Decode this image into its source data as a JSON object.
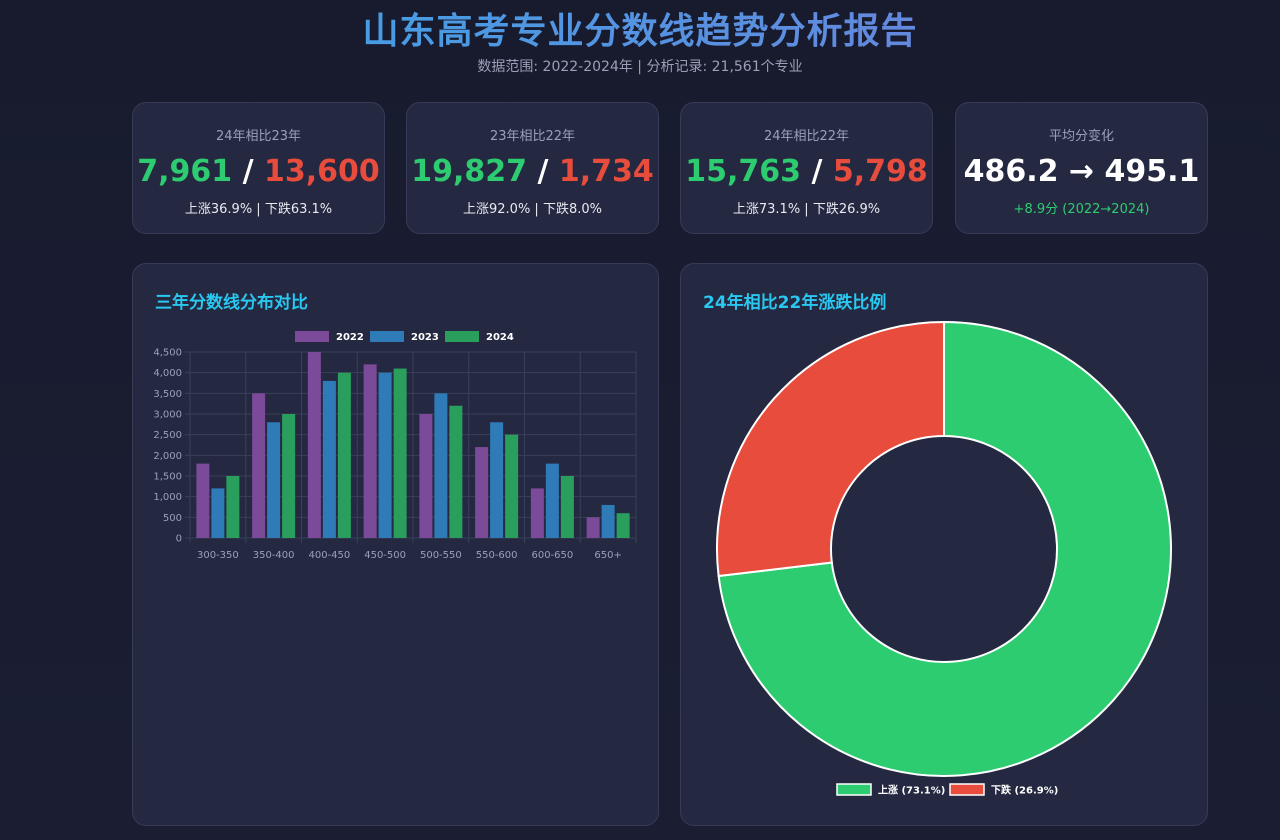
{
  "header": {
    "title": "山东高考专业分数线趋势分析报告",
    "subtitle": "数据范围: 2022-2024年 | 分析记录: 21,561个专业"
  },
  "cards": [
    {
      "label": "24年相比23年",
      "up": "7,961",
      "sep": " / ",
      "down": "13,600",
      "detail": "上涨36.9% | 下跌63.1%"
    },
    {
      "label": "23年相比22年",
      "up": "19,827",
      "sep": " / ",
      "down": "1,734",
      "detail": "上涨92.0% | 下跌8.0%"
    },
    {
      "label": "24年相比22年",
      "up": "15,763",
      "sep": " / ",
      "down": "5,798",
      "detail": "上涨73.1% | 下跌26.9%"
    },
    {
      "label": "平均分变化",
      "value": "486.2 → 495.1",
      "detail": "+8.9分 (2022→2024)"
    }
  ],
  "colors": {
    "s2022": "#7b4a98",
    "s2023": "#2f7bb8",
    "s2024": "#2a9e5c",
    "up": "#2ecc71",
    "down": "#e74c3c"
  },
  "chart_data": [
    {
      "type": "bar",
      "title": "三年分数线分布对比",
      "categories": [
        "300-350",
        "350-400",
        "400-450",
        "450-500",
        "500-550",
        "550-600",
        "600-650",
        "650+"
      ],
      "series": [
        {
          "name": "2022",
          "values": [
            1800,
            3500,
            4500,
            4200,
            3000,
            2200,
            1200,
            500
          ]
        },
        {
          "name": "2023",
          "values": [
            1200,
            2800,
            3800,
            4000,
            3500,
            2800,
            1800,
            800
          ]
        },
        {
          "name": "2024",
          "values": [
            1500,
            3000,
            4000,
            4100,
            3200,
            2500,
            1500,
            600
          ]
        }
      ],
      "ylim": [
        0,
        4500
      ],
      "yticks": [
        "0",
        "500",
        "1,000",
        "1,500",
        "2,000",
        "2,500",
        "3,000",
        "3,500",
        "4,000",
        "4,500"
      ],
      "grid": true,
      "legend": "top"
    },
    {
      "type": "pie",
      "title": "24年相比22年涨跌比例",
      "labels": [
        "上涨 (73.1%)",
        "下跌 (26.9%)"
      ],
      "values": [
        73.1,
        26.9
      ],
      "legend": "bottom"
    }
  ]
}
